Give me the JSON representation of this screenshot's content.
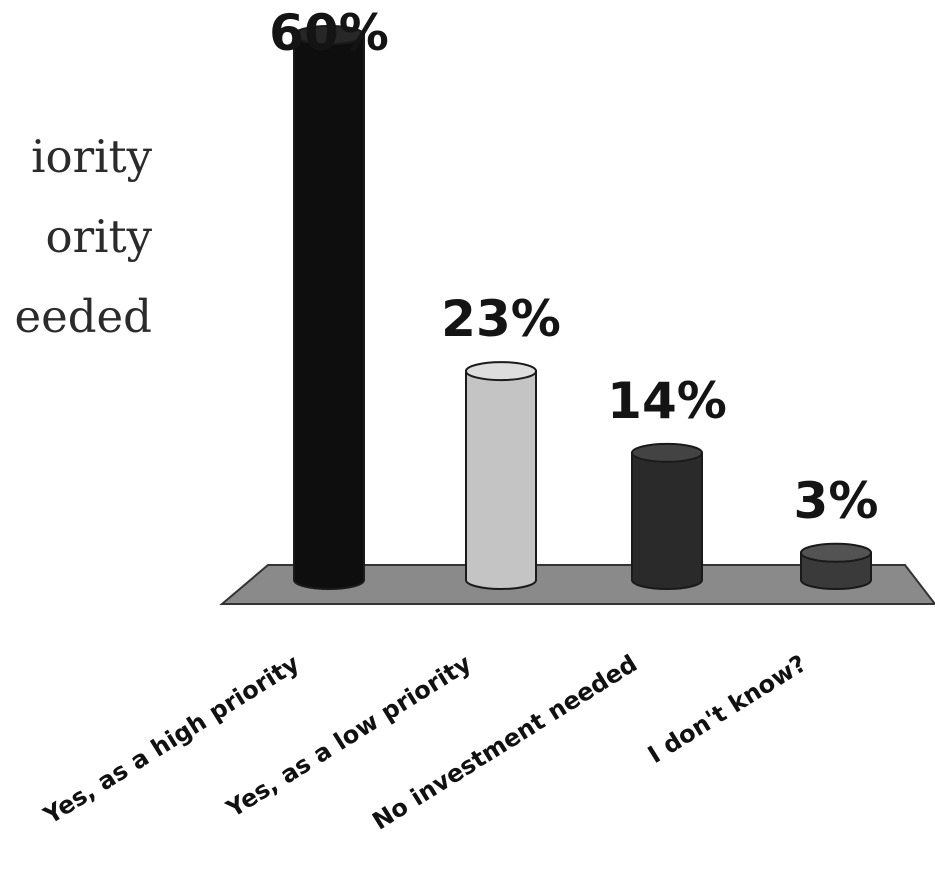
{
  "legend": {
    "items": [
      "Yes, as a high priority",
      "Yes, as a low priority",
      "No investment needed"
    ],
    "visible_fragments": [
      "iority",
      "ority",
      "eeded"
    ]
  },
  "chart_data": {
    "type": "bar",
    "categories": [
      "Yes, as a high priority",
      "Yes, as a low priority",
      "No investment needed",
      "I don't know?"
    ],
    "values": [
      60,
      23,
      14,
      3
    ],
    "labels": [
      "60%",
      "23%",
      "14%",
      "3%"
    ],
    "colors": [
      "#0e0e0e",
      "#c4c4c4",
      "#2a2a2a",
      "#3a3a3a"
    ],
    "floor_color": "#8a8a8a",
    "title": "",
    "xlabel": "",
    "ylabel": "",
    "ylim": [
      0,
      60
    ]
  }
}
